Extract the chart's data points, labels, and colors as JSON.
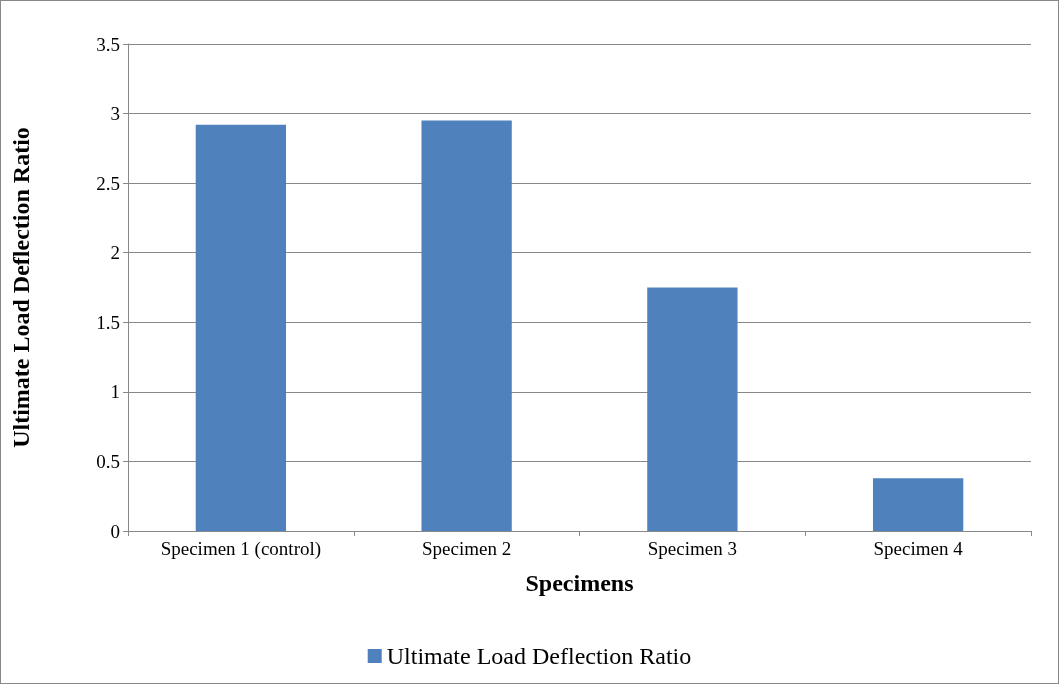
{
  "chart_data": {
    "type": "bar",
    "xlabel": "Specimens",
    "ylabel": "Ultimate Load Deflection Ratio",
    "categories": [
      "Specimen 1 (control)",
      "Specimen 2",
      "Specimen 3",
      "Specimen 4"
    ],
    "series": [
      {
        "name": "Ultimate Load Deflection Ratio",
        "color": "#4f81bd",
        "values": [
          2.92,
          2.95,
          1.75,
          0.38
        ]
      }
    ],
    "ylim": [
      0,
      3.5
    ],
    "yticks": [
      0,
      0.5,
      1,
      1.5,
      2,
      2.5,
      3,
      3.5
    ],
    "grid": "y",
    "legend": "bottom"
  }
}
